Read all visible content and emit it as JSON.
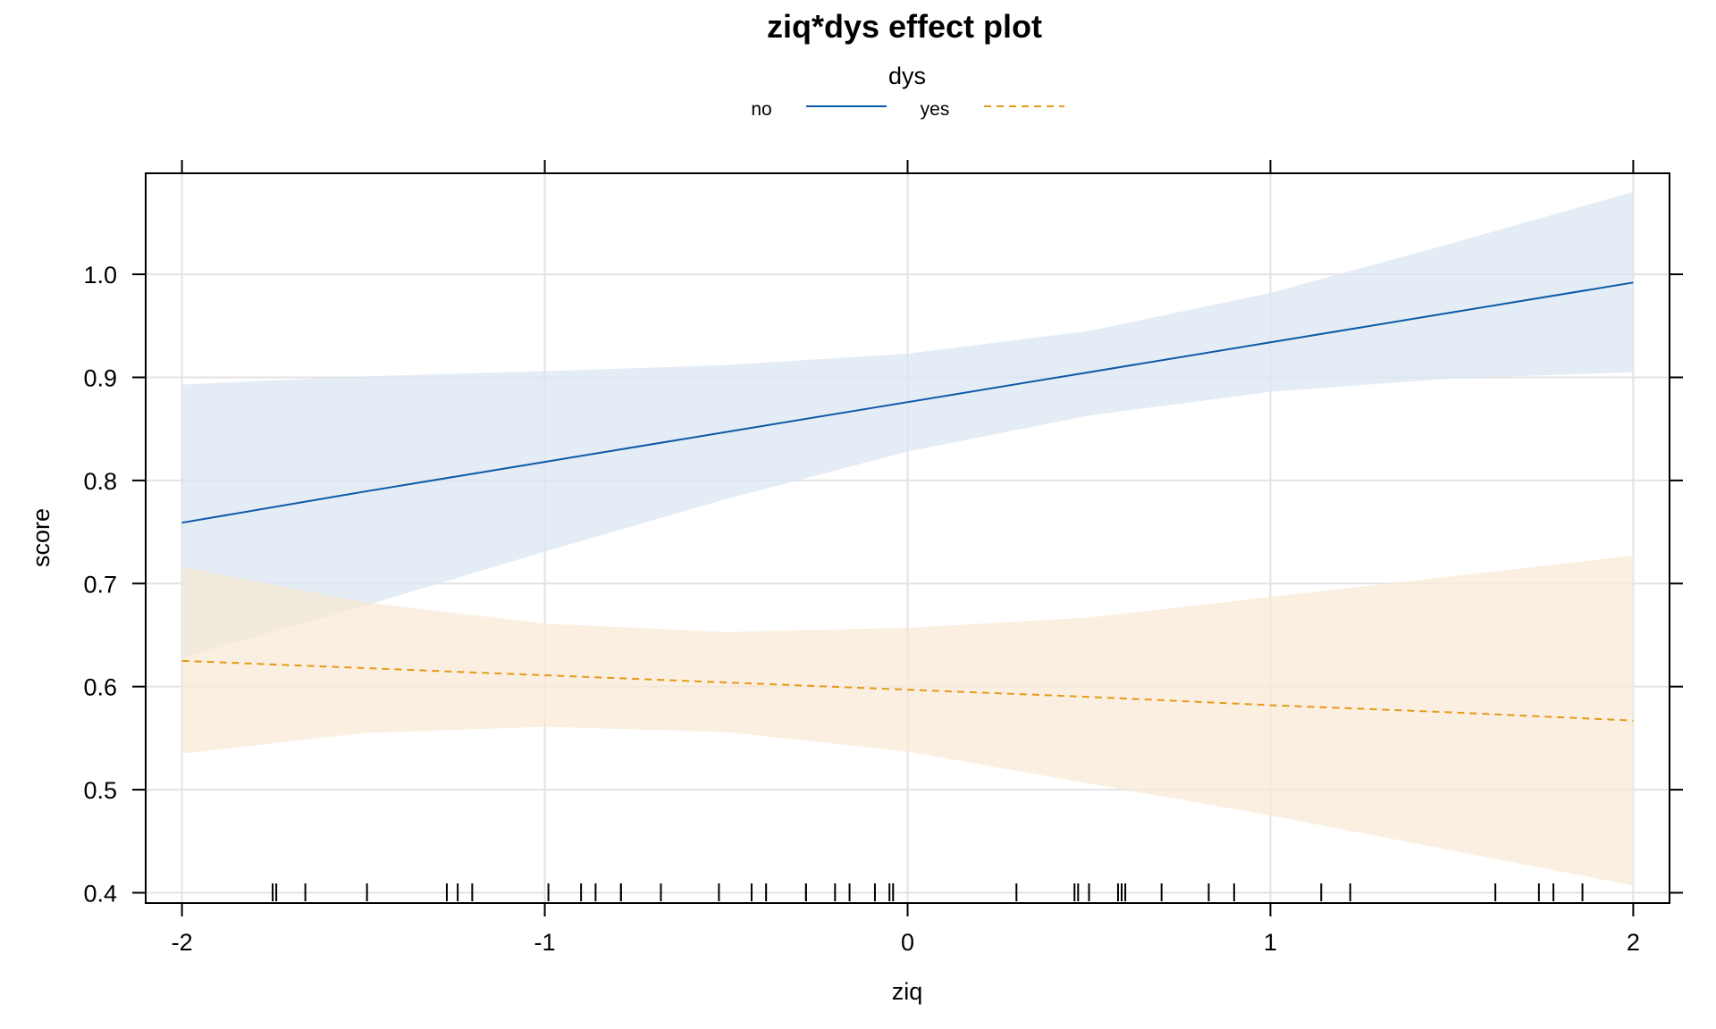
{
  "chart_data": {
    "type": "line",
    "title": "ziq*dys effect plot",
    "xlabel": "ziq",
    "ylabel": "score",
    "xlim": [
      -2.1,
      2.1
    ],
    "ylim": [
      0.39,
      1.098
    ],
    "xticks": [
      -2,
      -1,
      0,
      1,
      2
    ],
    "xtick_labels": [
      "-2",
      "-1",
      "0",
      "1",
      "2"
    ],
    "yticks": [
      0.4,
      0.5,
      0.6,
      0.7,
      0.8,
      0.9,
      1.0
    ],
    "ytick_labels": [
      "0.4",
      "0.5",
      "0.6",
      "0.7",
      "0.8",
      "0.9",
      "1.0"
    ],
    "grid": true,
    "legend": {
      "title": "dys",
      "placement": "top",
      "entries": [
        {
          "label": "no",
          "series": 0
        },
        {
          "label": "yes",
          "series": 1
        }
      ]
    },
    "series": [
      {
        "name": "no",
        "color": "#0b5aa8",
        "band_color": "#dbe6f1",
        "line_style": "solid",
        "x": [
          -2,
          -1.5,
          -1,
          -0.5,
          0,
          0.5,
          1,
          1.5,
          2
        ],
        "values": [
          0.759,
          0.789,
          0.818,
          0.847,
          0.876,
          0.905,
          0.934,
          0.963,
          0.992
        ],
        "lower": [
          0.628,
          0.678,
          0.731,
          0.782,
          0.828,
          0.863,
          0.886,
          0.899,
          0.905
        ],
        "upper": [
          0.893,
          0.901,
          0.906,
          0.912,
          0.923,
          0.945,
          0.982,
          1.03,
          1.08
        ]
      },
      {
        "name": "yes",
        "color": "#e69a1a",
        "band_color": "#f8ead6",
        "line_style": "dashed",
        "x": [
          -2,
          -1.5,
          -1,
          -0.5,
          0,
          0.5,
          1,
          1.5,
          2
        ],
        "values": [
          0.625,
          0.618,
          0.611,
          0.604,
          0.597,
          0.59,
          0.582,
          0.575,
          0.567
        ],
        "lower": [
          0.535,
          0.555,
          0.561,
          0.556,
          0.537,
          0.506,
          0.475,
          0.441,
          0.407
        ],
        "upper": [
          0.716,
          0.682,
          0.661,
          0.653,
          0.657,
          0.667,
          0.687,
          0.707,
          0.727
        ]
      }
    ],
    "rug_x": [
      -1.75,
      -1.74,
      -1.66,
      -1.49,
      -1.27,
      -1.24,
      -1.2,
      -0.99,
      -0.9,
      -0.86,
      -0.79,
      -0.79,
      -0.68,
      -0.52,
      -0.43,
      -0.39,
      -0.28,
      -0.28,
      -0.2,
      -0.16,
      -0.09,
      -0.05,
      -0.04,
      0.3,
      0.46,
      0.47,
      0.5,
      0.58,
      0.59,
      0.6,
      0.7,
      0.83,
      0.9,
      1.14,
      1.22,
      1.62,
      1.74,
      1.78,
      1.86
    ]
  }
}
